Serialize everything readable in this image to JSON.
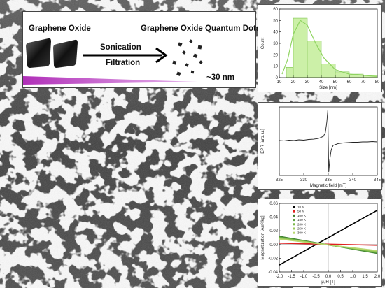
{
  "scheme": {
    "left_label": "Graphene Oxide",
    "right_label": "Graphene Oxide Quantum Dots",
    "step1": "Sonication",
    "step2": "Filtration",
    "size_label": "~30 nm",
    "wedge_color": "#b02fb8"
  },
  "chart_data": [
    {
      "type": "bar",
      "xlabel": "Size [nm]",
      "ylabel": "Count",
      "xlim": [
        10,
        80
      ],
      "ylim": [
        0,
        60
      ],
      "xticks": [
        "10",
        "20",
        "30",
        "40",
        "50",
        "60",
        "70",
        "80"
      ],
      "yticks": [
        "0",
        "10",
        "20",
        "30",
        "40",
        "50",
        "60"
      ],
      "bins": [
        [
          15,
          20
        ],
        [
          20,
          30
        ],
        [
          30,
          40
        ],
        [
          40,
          50
        ],
        [
          50,
          60
        ],
        [
          60,
          70
        ],
        [
          70,
          80
        ]
      ],
      "values": [
        9,
        52,
        32,
        12,
        5,
        3,
        2
      ],
      "fit_curve": [
        [
          12,
          3
        ],
        [
          16,
          16
        ],
        [
          20,
          38
        ],
        [
          25,
          50
        ],
        [
          30,
          46
        ],
        [
          36,
          30
        ],
        [
          42,
          17
        ],
        [
          50,
          7
        ],
        [
          60,
          3
        ],
        [
          80,
          1
        ]
      ],
      "bar_color": "#ccf0a8",
      "curve_color": "#8fd460",
      "grid": false
    },
    {
      "type": "line",
      "xlabel": "Magnetic field [mT]",
      "ylabel": "EPR [arb. u.]",
      "xlim": [
        325,
        345
      ],
      "ylim": [
        -1,
        1
      ],
      "xticks": [
        "325",
        "330",
        "335",
        "340",
        "345"
      ],
      "x": [
        325,
        326,
        327,
        328,
        329,
        330,
        331,
        332,
        333,
        334,
        334.4,
        334.7,
        334.9,
        335.1,
        335.3,
        335.6,
        336,
        337,
        338,
        339,
        340,
        341,
        342,
        343,
        344,
        345
      ],
      "y": [
        0.02,
        0.01,
        0.03,
        0.02,
        0.04,
        0.03,
        0.05,
        0.06,
        0.08,
        0.14,
        0.25,
        0.55,
        0.9,
        -0.9,
        -0.55,
        -0.25,
        -0.12,
        -0.07,
        -0.05,
        -0.04,
        -0.03,
        -0.03,
        -0.02,
        -0.02,
        -0.01,
        -0.02
      ],
      "line_color": "#222222",
      "grid": false
    },
    {
      "type": "line",
      "xlabel": "μ₀H [T]",
      "ylabel": "Magnetization [Am²/kg]",
      "xlim": [
        -2,
        2
      ],
      "ylim": [
        -0.04,
        0.06
      ],
      "xticks": [
        "-2.0",
        "-1.5",
        "-1.0",
        "-0.5",
        "0.0",
        "0.5",
        "1.0",
        "1.5",
        "2.0"
      ],
      "yticks": [
        "-0.04",
        "-0.02",
        "0.00",
        "0.02",
        "0.04",
        "0.06"
      ],
      "legend_position": "top-left",
      "series": [
        {
          "name": "10 K",
          "color": "#000000",
          "x": [
            -2,
            2
          ],
          "y": [
            -0.03,
            0.05
          ]
        },
        {
          "name": "50 K",
          "color": "#e02020",
          "x": [
            -2,
            2
          ],
          "y": [
            0.002,
            -0.001
          ]
        },
        {
          "name": "100 K",
          "color": "#3a7a2a",
          "x": [
            -2,
            2
          ],
          "y": [
            0.012,
            -0.013
          ]
        },
        {
          "name": "150 K",
          "color": "#5aa040",
          "x": [
            -2,
            2
          ],
          "y": [
            0.011,
            -0.012
          ]
        },
        {
          "name": "200 K",
          "color": "#7ab848",
          "x": [
            -2,
            2
          ],
          "y": [
            0.01,
            -0.011
          ]
        },
        {
          "name": "250 K",
          "color": "#9ac85a",
          "x": [
            -2,
            2
          ],
          "y": [
            0.009,
            -0.01
          ]
        },
        {
          "name": "300 K",
          "color": "#b8d870",
          "x": [
            -2,
            2
          ],
          "y": [
            0.008,
            -0.009
          ]
        }
      ],
      "grid": false
    }
  ]
}
